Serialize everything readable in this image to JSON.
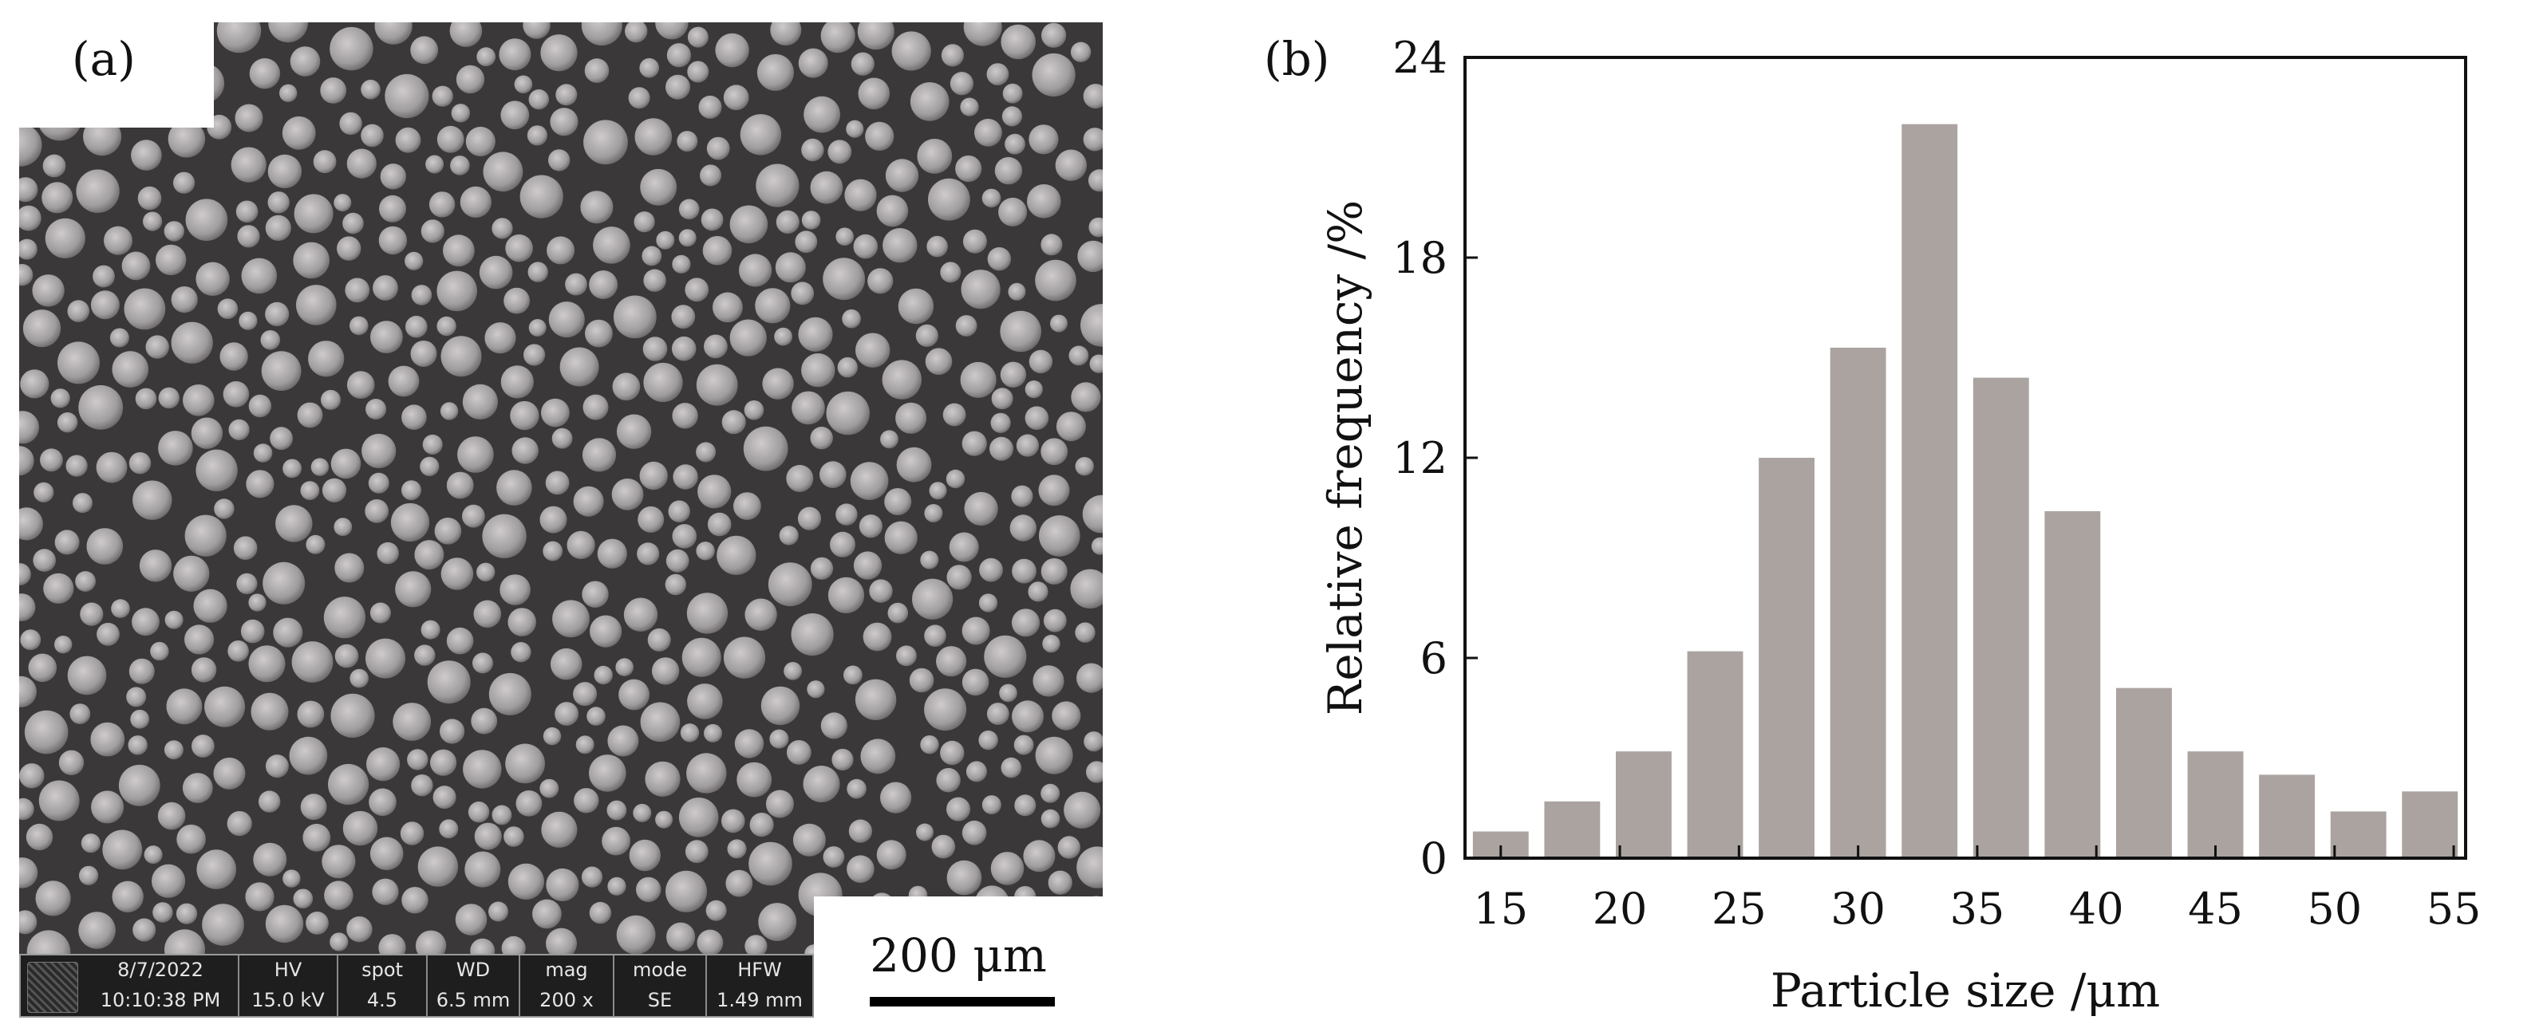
{
  "panels": {
    "a_label": "(a)",
    "b_label": "(b)"
  },
  "sem": {
    "info_bar": {
      "cells": [
        {
          "header": "8/7/2022",
          "value": "10:10:38 PM"
        },
        {
          "header": "HV",
          "value": "15.0 kV"
        },
        {
          "header": "spot",
          "value": "4.5"
        },
        {
          "header": "WD",
          "value": "6.5 mm"
        },
        {
          "header": "mag",
          "value": "200 x"
        },
        {
          "header": "mode",
          "value": "SE"
        },
        {
          "header": "HFW",
          "value": "1.49 mm"
        }
      ]
    },
    "scale_bar_label": "200 μm",
    "colors": {
      "background": "#3b3839",
      "particle": "#a09d9e"
    }
  },
  "chart_data": {
    "type": "bar",
    "categories": [
      "15",
      "18",
      "21",
      "24",
      "27",
      "30",
      "33",
      "36",
      "39",
      "42",
      "45",
      "48",
      "51",
      "54"
    ],
    "values": [
      0.8,
      1.7,
      3.2,
      6.2,
      12.0,
      15.3,
      22.0,
      14.4,
      10.4,
      5.1,
      3.2,
      2.5,
      1.4,
      2.0
    ],
    "xlabel": "Particle size /μm",
    "ylabel": "Relative frequency /%",
    "xlim": [
      13.5,
      55.5
    ],
    "ylim": [
      0,
      24
    ],
    "xticks": [
      15,
      20,
      25,
      30,
      35,
      40,
      45,
      50,
      55
    ],
    "yticks": [
      0,
      6,
      12,
      18,
      24
    ],
    "bar_color": "#aaa3a0",
    "grid": false,
    "legend": "none"
  }
}
